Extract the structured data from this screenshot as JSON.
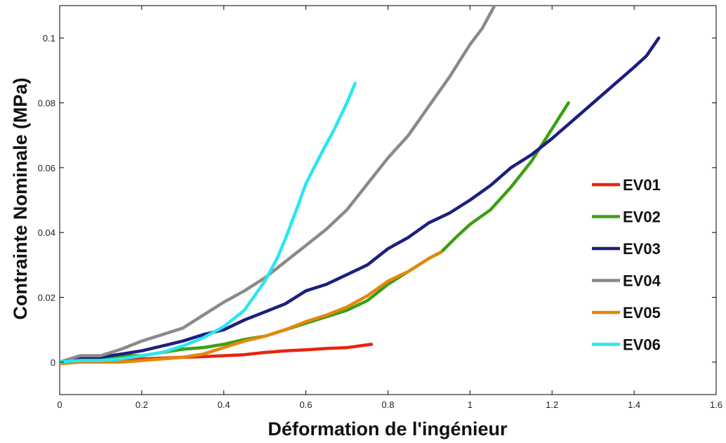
{
  "chart_data": {
    "type": "line",
    "xlabel": "Déformation de l'ingénieur",
    "ylabel": "Contrainte Nominale (MPa)",
    "xlim": [
      0,
      1.6
    ],
    "ylim": [
      -0.01,
      0.11
    ],
    "x_ticks": [
      0,
      0.2,
      0.4,
      0.6,
      0.8,
      1.0,
      1.2,
      1.4,
      1.6
    ],
    "x_tick_labels": [
      "0",
      "0.2",
      "0.4",
      "0.6",
      "0.8",
      "1",
      "1.2",
      "1.4",
      "1.6"
    ],
    "y_ticks": [
      0,
      0.02,
      0.04,
      0.06,
      0.08,
      0.1
    ],
    "y_tick_labels": [
      "0",
      "0.02",
      "0.04",
      "0.06",
      "0.08",
      "0.1"
    ],
    "grid": false,
    "legend_position": "right",
    "series": [
      {
        "name": "EV01",
        "color": "#e8230c",
        "x": [
          0,
          0.1,
          0.2,
          0.3,
          0.35,
          0.4,
          0.45,
          0.5,
          0.55,
          0.6,
          0.65,
          0.7,
          0.76
        ],
        "y": [
          0,
          0.0005,
          0.001,
          0.0015,
          0.0017,
          0.002,
          0.0023,
          0.003,
          0.0035,
          0.0038,
          0.0042,
          0.0045,
          0.0055
        ]
      },
      {
        "name": "EV02",
        "color": "#3aa012",
        "x": [
          0,
          0.05,
          0.1,
          0.15,
          0.2,
          0.25,
          0.3,
          0.35,
          0.4,
          0.45,
          0.5,
          0.55,
          0.6,
          0.65,
          0.7,
          0.75,
          0.8,
          0.85,
          0.9,
          0.93,
          0.97,
          1.0,
          1.05,
          1.1,
          1.15,
          1.2,
          1.24
        ],
        "y": [
          0,
          0.001,
          0.001,
          0.002,
          0.002,
          0.003,
          0.004,
          0.0045,
          0.0055,
          0.007,
          0.008,
          0.01,
          0.012,
          0.014,
          0.016,
          0.019,
          0.024,
          0.028,
          0.032,
          0.034,
          0.039,
          0.0425,
          0.047,
          0.054,
          0.062,
          0.072,
          0.08
        ]
      },
      {
        "name": "EV03",
        "color": "#1c1f7e",
        "x": [
          0,
          0.05,
          0.1,
          0.15,
          0.2,
          0.25,
          0.3,
          0.35,
          0.4,
          0.45,
          0.5,
          0.55,
          0.6,
          0.65,
          0.7,
          0.75,
          0.8,
          0.85,
          0.9,
          0.95,
          1.0,
          1.05,
          1.1,
          1.15,
          1.2,
          1.25,
          1.3,
          1.35,
          1.4,
          1.43,
          1.46
        ],
        "y": [
          0,
          0.0015,
          0.0015,
          0.0025,
          0.0035,
          0.005,
          0.0065,
          0.0085,
          0.01,
          0.013,
          0.0155,
          0.018,
          0.022,
          0.024,
          0.027,
          0.03,
          0.035,
          0.0385,
          0.043,
          0.046,
          0.05,
          0.0545,
          0.06,
          0.064,
          0.069,
          0.0745,
          0.08,
          0.0855,
          0.091,
          0.0945,
          0.1
        ]
      },
      {
        "name": "EV04",
        "color": "#8a8a8a",
        "x": [
          0,
          0.05,
          0.1,
          0.15,
          0.2,
          0.25,
          0.3,
          0.35,
          0.4,
          0.45,
          0.5,
          0.55,
          0.6,
          0.65,
          0.7,
          0.75,
          0.8,
          0.85,
          0.9,
          0.95,
          1.0,
          1.03,
          1.06
        ],
        "y": [
          0,
          0.002,
          0.002,
          0.004,
          0.0065,
          0.0085,
          0.0105,
          0.0145,
          0.0185,
          0.022,
          0.026,
          0.031,
          0.036,
          0.041,
          0.047,
          0.055,
          0.063,
          0.07,
          0.079,
          0.088,
          0.098,
          0.103,
          0.11
        ]
      },
      {
        "name": "EV05",
        "color": "#e4870c",
        "x": [
          0,
          0.05,
          0.1,
          0.15,
          0.2,
          0.25,
          0.3,
          0.35,
          0.4,
          0.45,
          0.5,
          0.55,
          0.6,
          0.65,
          0.7,
          0.75,
          0.8,
          0.85,
          0.9,
          0.93
        ],
        "y": [
          -0.0005,
          0,
          0,
          0,
          0.0005,
          0.001,
          0.0015,
          0.0025,
          0.0045,
          0.0065,
          0.008,
          0.01,
          0.0125,
          0.0145,
          0.017,
          0.0205,
          0.025,
          0.028,
          0.032,
          0.034
        ]
      },
      {
        "name": "EV06",
        "color": "#29e6f2",
        "x": [
          0,
          0.05,
          0.1,
          0.15,
          0.2,
          0.25,
          0.3,
          0.35,
          0.4,
          0.45,
          0.5,
          0.53,
          0.55,
          0.58,
          0.6,
          0.62,
          0.64,
          0.67,
          0.7,
          0.72
        ],
        "y": [
          0,
          0.0005,
          0.0005,
          0.001,
          0.002,
          0.003,
          0.005,
          0.0075,
          0.011,
          0.016,
          0.025,
          0.032,
          0.038,
          0.048,
          0.055,
          0.06,
          0.065,
          0.072,
          0.08,
          0.086
        ]
      }
    ]
  }
}
